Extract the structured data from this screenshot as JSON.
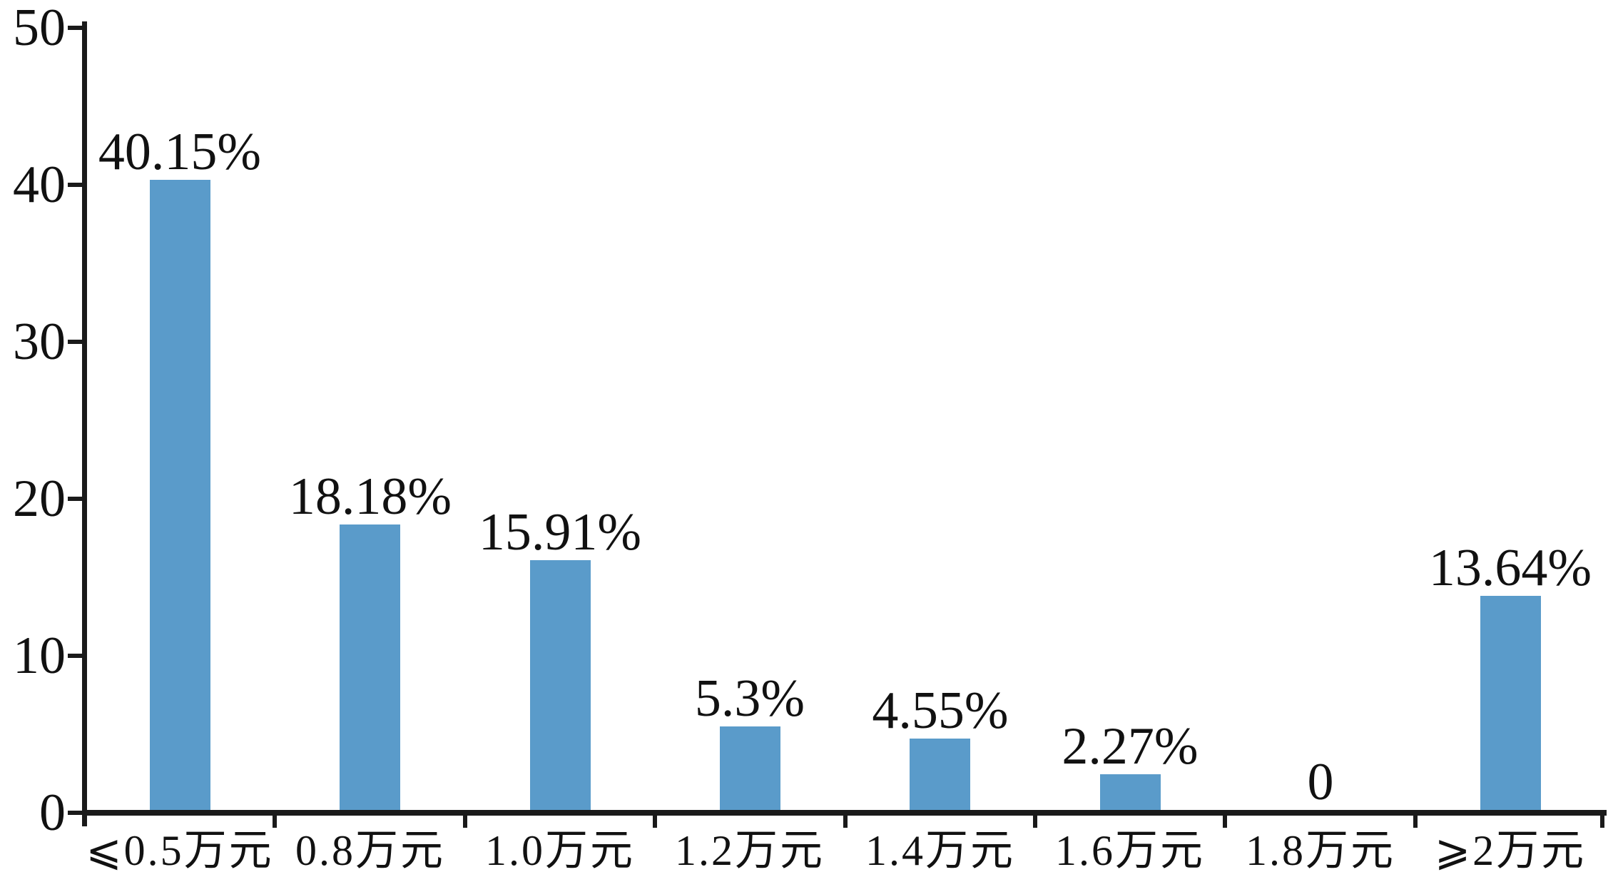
{
  "page": {
    "background_color": "#ffffff",
    "title": ""
  },
  "chart_data": {
    "type": "bar",
    "title": "",
    "xlabel": "",
    "ylabel": "",
    "categories": [
      "⩽0.5万元",
      "0.8万元",
      "1.0万元",
      "1.2万元",
      "1.4万元",
      "1.6万元",
      "1.8万元",
      "⩾2万元"
    ],
    "values": [
      40.15,
      18.18,
      15.91,
      5.3,
      4.55,
      2.27,
      0,
      13.64
    ],
    "value_labels": [
      "40.15%",
      "18.18%",
      "15.91%",
      "5.3%",
      "4.55%",
      "2.27%",
      "0",
      "13.64%"
    ],
    "ylim": [
      0,
      50
    ],
    "yticks": [
      0,
      10,
      20,
      30,
      40,
      50
    ],
    "ytick_labels": [
      "0",
      "10",
      "20",
      "30",
      "40",
      "50"
    ],
    "grid": false,
    "legend": false,
    "bar_color": "#5A9BCA",
    "axis_color": "#1a1a1a",
    "text_color": "#111111"
  }
}
